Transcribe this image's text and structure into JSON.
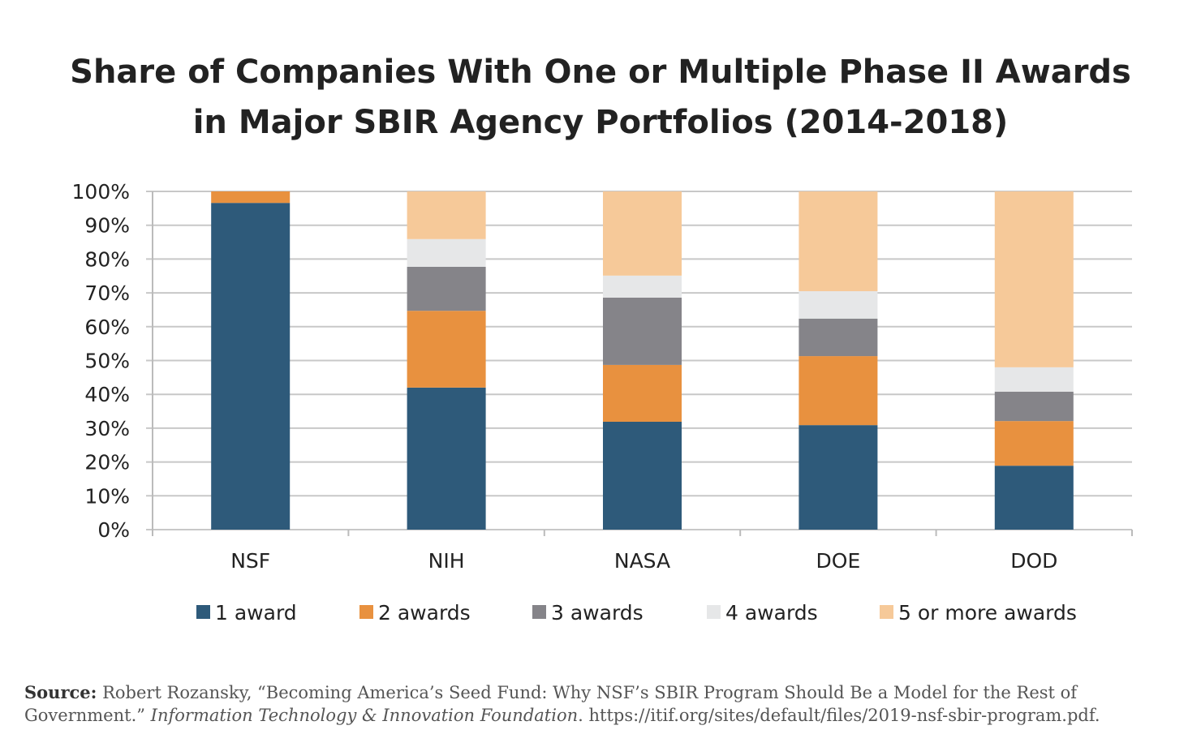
{
  "chart_data": {
    "type": "bar",
    "stacked": true,
    "title_line1": "Share of Companies With One or Multiple Phase II Awards",
    "title_line2": "in Major SBIR Agency Portfolios (2014-2018)",
    "categories": [
      "NSF",
      "NIH",
      "NASA",
      "DOE",
      "DOD"
    ],
    "ylim": [
      0,
      100
    ],
    "yticks": [
      "0%",
      "10%",
      "20%",
      "30%",
      "40%",
      "50%",
      "60%",
      "70%",
      "80%",
      "90%",
      "100%"
    ],
    "grid": true,
    "legend_position": "bottom",
    "series": [
      {
        "name": "1 award",
        "color": "#2e5a7a",
        "values": [
          96.6,
          42.0,
          31.9,
          30.9,
          18.9
        ]
      },
      {
        "name": "2 awards",
        "color": "#e8913f",
        "values": [
          3.4,
          22.7,
          16.8,
          20.4,
          13.2
        ]
      },
      {
        "name": "3 awards",
        "color": "#858489",
        "values": [
          0,
          13.0,
          19.9,
          11.1,
          8.7
        ]
      },
      {
        "name": "4 awards",
        "color": "#e6e7e8",
        "values": [
          0,
          8.2,
          6.5,
          8.1,
          7.2
        ]
      },
      {
        "name": "5 or more awards",
        "color": "#f6c999",
        "values": [
          0,
          14.1,
          24.9,
          29.5,
          52.0
        ]
      }
    ]
  },
  "source": {
    "label": "Source:",
    "text1": " Robert Rozansky, “Becoming America’s Seed Fund: Why NSF’s SBIR Program Should Be a Model for the Rest of Government.” ",
    "italic": "Information Technology & Innovation Foundation",
    "text2": ". https://itif.org/sites/default/files/2019-nsf-sbir-program.pdf."
  }
}
